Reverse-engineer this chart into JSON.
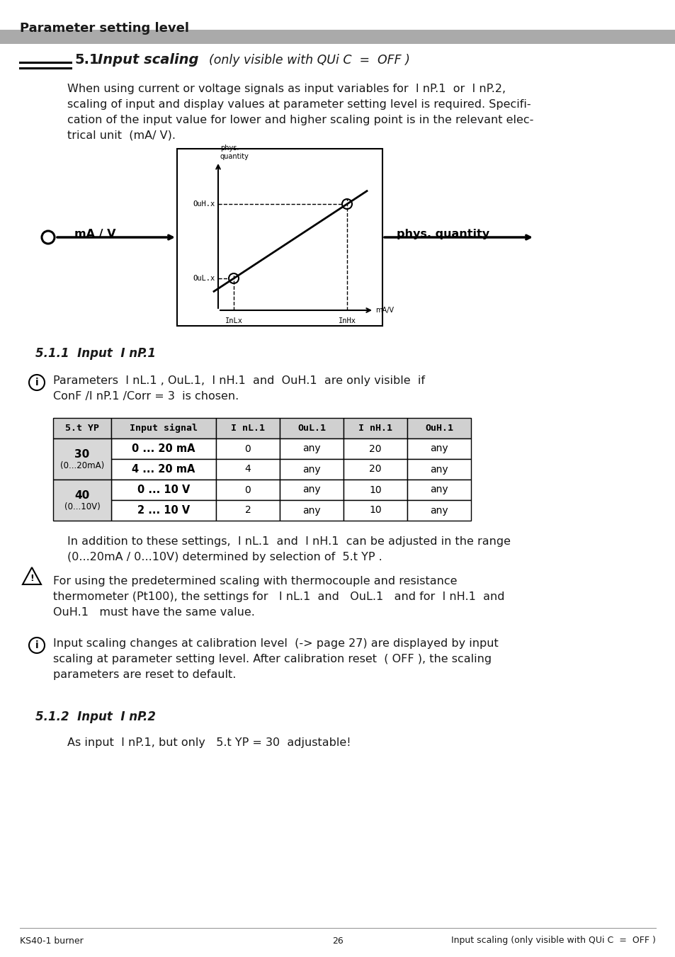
{
  "page_title": "Parameter setting level",
  "section_number": "5.1",
  "section_title_bold": "Input scaling",
  "section_title_suffix": "(only visible with QUi C  =  OFF )",
  "body_text_1a": "When using current or voltage signals as input variables for  I nP.1  or  I nP.2,",
  "body_text_1b": "scaling of input and display values at parameter setting level is required. Specifi-",
  "body_text_1c": "cation of the input value for lower and higher scaling point is in the relevant elec-",
  "body_text_1d": "trical unit  (mA/ V).",
  "subsection_511": "5.1.1",
  "subsection_511_text": "Input  I nP.1",
  "info_511a": "Parameters  I nL.1 , OuL.1,  I nH.1  and  OuH.1  are only visible  if",
  "info_511b": "ConF /I nP.1 /Corr = 3  is chosen.",
  "table_col0_header": "5.t YP",
  "table_col1_header": "Input signal",
  "table_col2_header": "I nL.1",
  "table_col3_header": "OuL.1",
  "table_col4_header": "I nH.1",
  "table_col5_header": "OuH.1",
  "table_group1_label": "30",
  "table_group1_sub": "(0...20mA)",
  "table_group2_label": "40",
  "table_group2_sub": "(0...10V)",
  "table_rows": [
    [
      "0 ... 20 mA",
      "0",
      "any",
      "20",
      "any"
    ],
    [
      "4 ... 20 mA",
      "4",
      "any",
      "20",
      "any"
    ],
    [
      "0 ... 10 V",
      "0",
      "any",
      "10",
      "any"
    ],
    [
      "2 ... 10 V",
      "2",
      "any",
      "10",
      "any"
    ]
  ],
  "addition_text_a": "In addition to these settings,  I nL.1  and  I nH.1  can be adjusted in the range",
  "addition_text_b": "(0...20mA / 0...10V) determined by selection of  5.t YP .",
  "warn_text_a": "For using the predetermined scaling with thermocouple and resistance",
  "warn_text_b": "thermometer (Pt100), the settings for   I nL.1  and   OuL.1   and for  I nH.1  and",
  "warn_text_c": "OuH.1   must have the same value.",
  "info2_text_a": "Input scaling changes at calibration level  (-> page 27) are displayed by input",
  "info2_text_b": "scaling at parameter setting level. After calibration reset  ( OFF ), the scaling",
  "info2_text_c": "parameters are reset to default.",
  "subsection_512": "5.1.2",
  "subsection_512_text": "Input  I nP.2",
  "text_512": "As input  I nP.1, but only   5.t YP = 30  adjustable!",
  "footer_left": "KS40-1 burner",
  "footer_center": "26",
  "footer_right": "Input scaling (only visible with QUi C  =  OFF )",
  "bg_color": "#ffffff",
  "header_bar_color": "#aaaaaa",
  "text_color": "#1a1a1a",
  "table_header_bg": "#d0d0d0",
  "table_group_bg": "#d8d8d8"
}
